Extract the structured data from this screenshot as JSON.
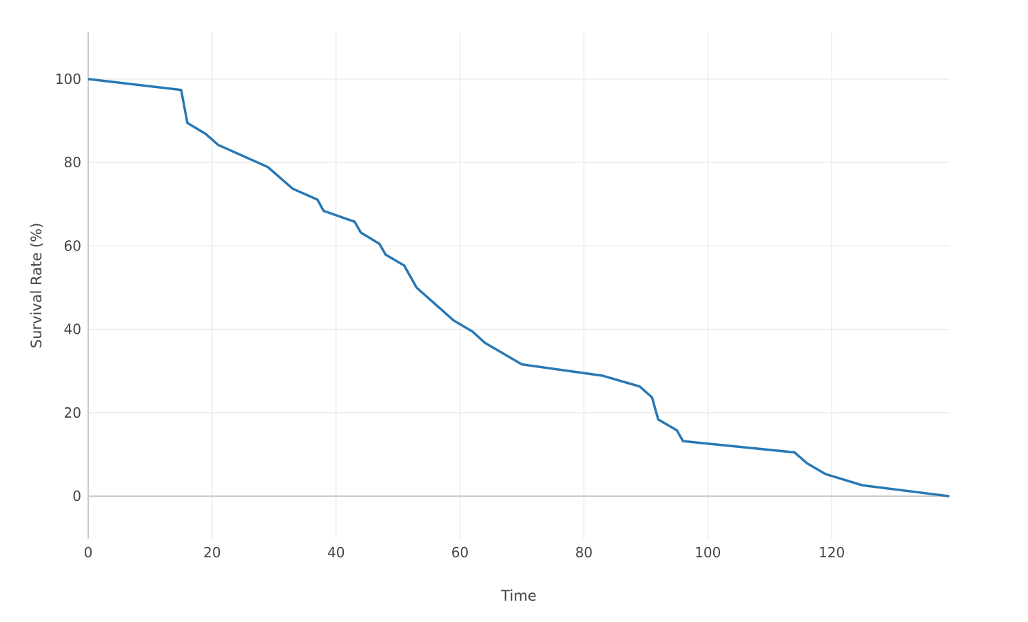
{
  "chart_data": {
    "type": "line",
    "title": "",
    "xlabel": "Time",
    "ylabel": "Survival Rate (%)",
    "xlim": [
      0,
      139
    ],
    "ylim": [
      -10.2,
      111.2
    ],
    "xticks": [
      0,
      20,
      40,
      60,
      80,
      100,
      120
    ],
    "yticks": [
      0,
      20,
      40,
      60,
      80,
      100
    ],
    "grid": true,
    "line_color": "#2878b5",
    "series": [
      {
        "x": [
          0,
          15,
          16,
          19,
          21,
          29,
          33,
          37,
          38,
          43,
          44,
          47,
          48,
          51,
          53,
          59,
          62,
          64,
          70,
          83,
          89,
          91,
          92,
          95,
          96,
          114,
          116,
          119,
          125,
          139
        ],
        "y": [
          100,
          97.4,
          89.5,
          86.8,
          84.2,
          78.9,
          73.7,
          71.1,
          68.4,
          65.8,
          63.2,
          60.5,
          57.9,
          55.3,
          50.0,
          42.1,
          39.5,
          36.8,
          31.6,
          28.9,
          26.3,
          23.7,
          18.4,
          15.8,
          13.2,
          10.5,
          7.9,
          5.3,
          2.6,
          0
        ]
      }
    ]
  }
}
